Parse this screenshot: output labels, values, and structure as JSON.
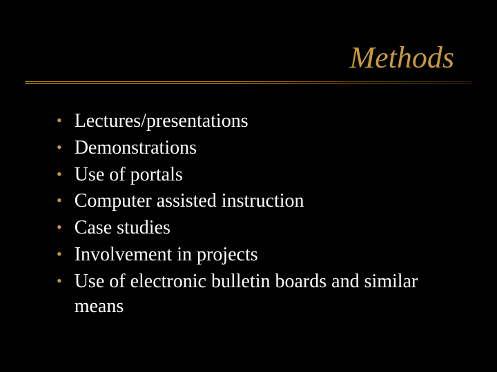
{
  "background_color": "#000000",
  "title": {
    "text": "Methods",
    "color": "#c89a3c",
    "fontsize": 44,
    "font_style": "italic",
    "font_family": "Times New Roman"
  },
  "underline": {
    "color_start": "#b8860b",
    "color_end": "#2a1d05",
    "double": true
  },
  "bullets": {
    "dot_color": "#c89a3c",
    "text_color": "#ffffff",
    "fontsize": 28,
    "dot_fontsize": 22,
    "items": [
      "Lectures/presentations",
      "Demonstrations",
      "Use of portals",
      "Computer assisted instruction",
      "Case studies",
      "Involvement in projects",
      "Use of electronic bulletin boards and similar means"
    ]
  }
}
